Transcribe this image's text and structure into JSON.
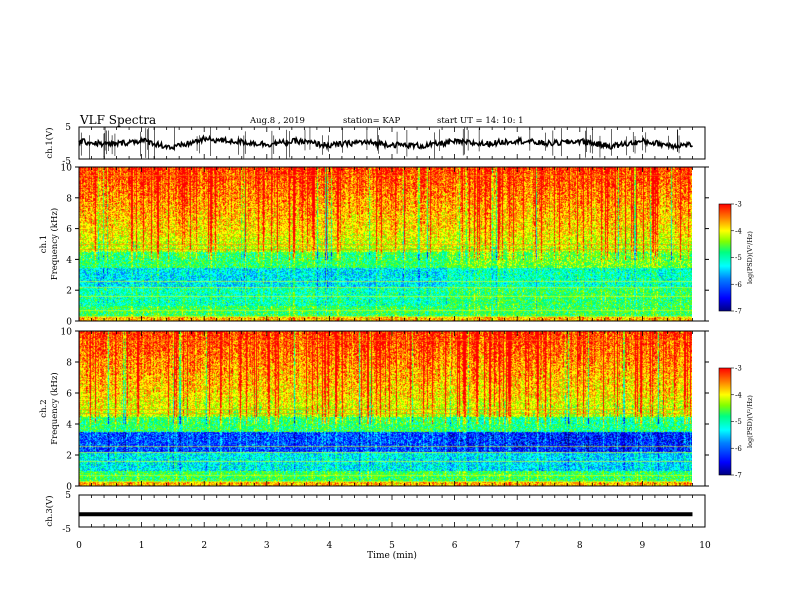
{
  "header": {
    "title": "VLF Spectra",
    "date": "Aug.8 , 2019",
    "station": "station= KAP",
    "start_time": "start UT = 14: 10: 1"
  },
  "colors": {
    "spectrogram": [
      "#000080",
      "#0000ff",
      "#0080ff",
      "#00ffff",
      "#00ff80",
      "#80ff00",
      "#ffff00",
      "#ff8000",
      "#ff0000"
    ],
    "waveform": "#000000"
  },
  "chart_data": [
    {
      "type": "line",
      "name": "ch1-waveform",
      "ylabel": "ch.1(V)",
      "ylim": [
        -5,
        5
      ],
      "yticks": [
        "5",
        "-5"
      ],
      "x": [
        0,
        0.5,
        1,
        1.5,
        2,
        2.5,
        3,
        3.5,
        4,
        4.5,
        5,
        5.5,
        6,
        6.5,
        7,
        7.5,
        8,
        8.5,
        9,
        9.5,
        9.8
      ],
      "y": [
        0.5,
        -0.5,
        0.8,
        -1.5,
        1.2,
        0.5,
        -0.4,
        0.6,
        -0.8,
        0.3,
        -0.5,
        -0.9,
        0.4,
        -0.3,
        0.8,
        -0.2,
        0.6,
        -1.0,
        0.5,
        -0.8,
        -0.5
      ]
    },
    {
      "type": "heatmap",
      "name": "ch1-spectrogram",
      "ylabel": "ch.1\nFrequency (kHz)",
      "xlim": [
        0,
        10
      ],
      "ylim": [
        0,
        10
      ],
      "yticks": [
        "0",
        "2",
        "4",
        "6",
        "8",
        "10"
      ],
      "colorbar": {
        "label": "log(PSD)(V²/Hz)",
        "range": [
          -7,
          -3
        ],
        "ticks": [
          "-3",
          "-4",
          "-5",
          "-6",
          "-7"
        ]
      }
    },
    {
      "type": "heatmap",
      "name": "ch2-spectrogram",
      "ylabel": "ch.2\nFrequency (kHz)",
      "xlim": [
        0,
        10
      ],
      "ylim": [
        0,
        10
      ],
      "yticks": [
        "0",
        "2",
        "4",
        "6",
        "8",
        "10"
      ],
      "colorbar": {
        "label": "log(PSD)(V²/Hz)",
        "range": [
          -7,
          -3
        ],
        "ticks": [
          "-3",
          "-4",
          "-5",
          "-6",
          "-7"
        ]
      }
    },
    {
      "type": "line",
      "name": "ch3-waveform",
      "ylabel": "ch.3(V)",
      "ylim": [
        -5,
        5
      ],
      "yticks": [
        "5",
        "-5"
      ],
      "x": [
        0,
        9.8
      ],
      "y": [
        -1,
        -1
      ]
    }
  ],
  "xaxis": {
    "label": "Time (min)",
    "ticks": [
      "0",
      "1",
      "2",
      "3",
      "4",
      "5",
      "6",
      "7",
      "8",
      "9",
      "10"
    ]
  }
}
